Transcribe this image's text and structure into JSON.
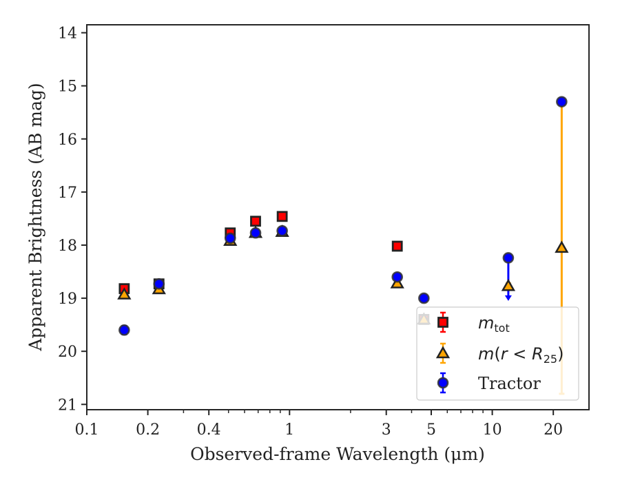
{
  "chart_data": {
    "type": "scatter",
    "xlabel": "Observed-frame Wavelength (μm)",
    "ylabel": "Apparent Brightness (AB mag)",
    "xscale": "log",
    "xlim": [
      0.1,
      30
    ],
    "ylim": [
      21.1,
      13.85
    ],
    "y_inverted": true,
    "x_major_ticks": [
      0.1,
      0.2,
      0.4,
      1,
      3,
      5,
      10,
      20
    ],
    "x_major_tick_labels": [
      "0.1",
      "0.2",
      "0.4",
      "1",
      "3",
      "5",
      "10",
      "20"
    ],
    "y_ticks": [
      14,
      15,
      16,
      17,
      18,
      19,
      20,
      21
    ],
    "y_tick_labels": [
      "14",
      "15",
      "16",
      "17",
      "18",
      "19",
      "20",
      "21"
    ],
    "grid": false,
    "legend_position": "bottom-right",
    "series": [
      {
        "key": "mtot",
        "legend_label": "m_tot",
        "marker": "square",
        "color": "#ff0000",
        "edge_color": "#222222",
        "error_color": "#ff0000",
        "points": [
          {
            "x": 0.153,
            "y": 18.82,
            "err": 0.05
          },
          {
            "x": 0.227,
            "y": 18.73,
            "err": 0.05
          },
          {
            "x": 0.51,
            "y": 17.77,
            "err": 0.05
          },
          {
            "x": 0.68,
            "y": 17.55,
            "err": 0.05
          },
          {
            "x": 0.92,
            "y": 17.46,
            "err": 0.05
          },
          {
            "x": 3.4,
            "y": 18.02,
            "err": 0.05
          },
          {
            "x": 4.6,
            "y": 19.4,
            "err": 0.05
          }
        ]
      },
      {
        "key": "mr25",
        "legend_label": "m(r < R_25)",
        "marker": "triangle",
        "color": "#ffa500",
        "edge_color": "#222222",
        "error_color": "#ffa500",
        "points": [
          {
            "x": 0.153,
            "y": 18.93,
            "err": 0.05
          },
          {
            "x": 0.227,
            "y": 18.83,
            "err": 0.05
          },
          {
            "x": 0.51,
            "y": 17.92,
            "err": 0.05
          },
          {
            "x": 0.68,
            "y": 17.77,
            "err": 0.05
          },
          {
            "x": 0.92,
            "y": 17.75,
            "err": 0.05
          },
          {
            "x": 3.4,
            "y": 18.72,
            "err": 0.05
          },
          {
            "x": 4.6,
            "y": 19.4,
            "err": 0.05
          },
          {
            "x": 12,
            "y": 18.77,
            "err": 0.05
          },
          {
            "x": 22,
            "y": 18.05,
            "err_low": 2.8,
            "err_high": 2.75
          }
        ]
      },
      {
        "key": "tractor",
        "legend_label": "Tractor",
        "marker": "circle",
        "color": "#0000ff",
        "edge_color": "#333333",
        "error_color": "#0000ff",
        "points": [
          {
            "x": 0.153,
            "y": 19.6,
            "err": 0.08
          },
          {
            "x": 0.227,
            "y": 18.73,
            "err": 0.05
          },
          {
            "x": 0.51,
            "y": 17.87,
            "err": 0.05
          },
          {
            "x": 0.68,
            "y": 17.77,
            "err": 0.05
          },
          {
            "x": 0.92,
            "y": 17.73,
            "err": 0.05
          },
          {
            "x": 3.4,
            "y": 18.6,
            "err": 0.06
          },
          {
            "x": 4.6,
            "y": 19.0,
            "err": 0.05
          },
          {
            "x": 12,
            "y": 18.24,
            "err": 0.05,
            "upper_limit_to": 19.05
          },
          {
            "x": 22,
            "y": 15.3,
            "err": 0.06
          }
        ]
      }
    ]
  }
}
